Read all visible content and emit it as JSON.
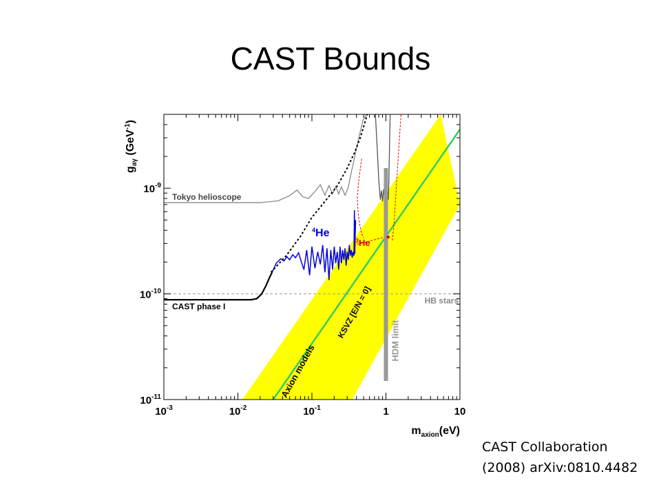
{
  "slide": {
    "title": "CAST Bounds",
    "citation_line1": "CAST Collaboration",
    "citation_line2": "(2008) arXiv:0810.4482"
  },
  "chart_data": {
    "type": "line",
    "x_scale": "log",
    "y_scale": "log",
    "xlim": [
      0.001,
      10
    ],
    "ylim": [
      1e-11,
      5e-09
    ],
    "xlabel": {
      "main": "m",
      "sub": "axion",
      "rest": "(eV)"
    },
    "ylabel": {
      "main": "g",
      "sub": "aγ",
      "rest": " (GeV",
      "sup": "-1",
      "end": ")"
    },
    "x_ticks": [
      {
        "value": 0.001,
        "base": "10",
        "exp": "-3"
      },
      {
        "value": 0.01,
        "base": "10",
        "exp": "-2"
      },
      {
        "value": 0.1,
        "base": "10",
        "exp": "-1"
      },
      {
        "value": 1,
        "base": "1",
        "exp": ""
      },
      {
        "value": 10,
        "base": "10",
        "exp": ""
      }
    ],
    "y_ticks": [
      {
        "value": 1e-11,
        "base": "10",
        "exp": "-11"
      },
      {
        "value": 1e-10,
        "base": "10",
        "exp": "-10"
      },
      {
        "value": 1e-09,
        "base": "10",
        "exp": "-9"
      }
    ],
    "colors": {
      "band": "#ffff00",
      "ksvz": "#33cc66",
      "tokyo": "#888888",
      "cast_phase1": "#000000",
      "he4": "#0000dd",
      "he3": "#dd0000",
      "dashed_projection": "#000000",
      "hdm": "#999999",
      "hb": "#999999"
    },
    "axion_band": {
      "upper_edge": [
        [
          0.0115,
          1e-11
        ],
        [
          5.5,
          5e-09
        ]
      ],
      "lower_edge": [
        [
          0.35,
          1e-11
        ],
        [
          10,
          7e-10
        ]
      ]
    },
    "series": [
      {
        "id": "tokyo",
        "name": "Tokyo helioscope",
        "label": "Tokyo helioscope",
        "points": [
          [
            0.001,
            7.3e-10
          ],
          [
            0.02,
            7.3e-10
          ],
          [
            0.035,
            7.6e-10
          ],
          [
            0.05,
            8.5e-10
          ],
          [
            0.063,
            9.6e-10
          ],
          [
            0.075,
            8.3e-10
          ],
          [
            0.09,
            8e-10
          ],
          [
            0.11,
            9.3e-10
          ],
          [
            0.13,
            1.08e-09
          ],
          [
            0.15,
            8.6e-10
          ],
          [
            0.17,
            1.06e-09
          ],
          [
            0.19,
            8.8e-10
          ],
          [
            0.21,
            1.04e-09
          ],
          [
            0.23,
            8.8e-10
          ],
          [
            0.25,
            1.03e-09
          ],
          [
            0.28,
            8.6e-10
          ],
          [
            0.31,
            1.02e-09
          ],
          [
            0.34,
            1.4e-09
          ],
          [
            0.38,
            2e-09
          ],
          [
            0.43,
            3e-09
          ],
          [
            0.49,
            4.4e-09
          ],
          [
            0.55,
            5e-09
          ]
        ]
      },
      {
        "id": "tokyo_high",
        "name": "Tokyo helioscope (high mass)",
        "points": [
          [
            0.72,
            5e-09
          ],
          [
            0.76,
            2.5e-09
          ],
          [
            0.8,
            1.2e-09
          ],
          [
            0.84,
            7.8e-10
          ],
          [
            0.87,
            9.5e-10
          ],
          [
            0.9,
            7.5e-10
          ],
          [
            0.93,
            9.8e-10
          ],
          [
            0.96,
            7.8e-10
          ],
          [
            0.99,
            1.1e-09
          ],
          [
            1.02,
            7.6e-10
          ],
          [
            1.05,
            9.4e-10
          ],
          [
            1.08,
            7.8e-10
          ],
          [
            1.1,
            1.3e-09
          ],
          [
            1.12,
            2.6e-09
          ],
          [
            1.14,
            5e-09
          ]
        ]
      },
      {
        "id": "cast_phase1",
        "name": "CAST phase I",
        "label": "CAST phase I",
        "points": [
          [
            0.001,
            8.8e-11
          ],
          [
            0.015,
            8.8e-11
          ],
          [
            0.018,
            9e-11
          ],
          [
            0.021,
            1e-10
          ],
          [
            0.024,
            1.2e-10
          ],
          [
            0.027,
            1.45e-10
          ],
          [
            0.029,
            1.6e-10
          ]
        ]
      },
      {
        "id": "he4",
        "name": "4He",
        "label": "He",
        "label_sup": "4",
        "points": [
          [
            0.029,
            1.6e-10
          ],
          [
            0.033,
            1.95e-10
          ],
          [
            0.038,
            2.15e-10
          ],
          [
            0.042,
            2.05e-10
          ],
          [
            0.046,
            2.25e-10
          ],
          [
            0.05,
            2.1e-10
          ],
          [
            0.055,
            2.35e-10
          ],
          [
            0.06,
            2.2e-10
          ],
          [
            0.066,
            2.45e-10
          ],
          [
            0.072,
            2e-10
          ],
          [
            0.078,
            1.7e-10
          ],
          [
            0.085,
            2.6e-10
          ],
          [
            0.093,
            1.5e-10
          ],
          [
            0.1,
            2.8e-10
          ],
          [
            0.11,
            1.75e-10
          ],
          [
            0.12,
            2.5e-10
          ],
          [
            0.13,
            1.9e-10
          ],
          [
            0.14,
            2.9e-10
          ],
          [
            0.15,
            1.6e-10
          ],
          [
            0.16,
            2.7e-10
          ],
          [
            0.17,
            1.35e-10
          ],
          [
            0.18,
            2.6e-10
          ],
          [
            0.19,
            1.7e-10
          ],
          [
            0.2,
            2.8e-10
          ],
          [
            0.21,
            1.95e-10
          ],
          [
            0.22,
            2.5e-10
          ],
          [
            0.23,
            1.7e-10
          ],
          [
            0.24,
            2.8e-10
          ],
          [
            0.25,
            1.95e-10
          ],
          [
            0.26,
            2.6e-10
          ],
          [
            0.27,
            2.1e-10
          ],
          [
            0.28,
            2.7e-10
          ],
          [
            0.29,
            1.85e-10
          ],
          [
            0.3,
            2.5e-10
          ],
          [
            0.31,
            2.1e-10
          ],
          [
            0.32,
            2.9e-10
          ],
          [
            0.33,
            2.3e-10
          ],
          [
            0.34,
            2.6e-10
          ],
          [
            0.35,
            2.2e-10
          ],
          [
            0.36,
            2.5e-10
          ],
          [
            0.37,
            2.3e-10
          ],
          [
            0.375,
            6.2e-10
          ],
          [
            0.38,
            2.4e-10
          ],
          [
            0.385,
            3.6e-10
          ],
          [
            0.39,
            5e-10
          ]
        ]
      },
      {
        "id": "he3",
        "name": "3He",
        "label": "He",
        "label_sup": "3",
        "points": [
          [
            0.37,
            2.9e-10
          ],
          [
            0.5,
            3.05e-10
          ],
          [
            0.7,
            3.25e-10
          ],
          [
            0.9,
            3.4e-10
          ],
          [
            1.03,
            3.45e-10
          ],
          [
            1.12,
            3.45e-10
          ]
        ]
      },
      {
        "id": "he3_sensitivity",
        "name": "3He sensitivity",
        "points": [
          [
            0.47,
            1.9e-09
          ],
          [
            0.43,
            1.2e-09
          ],
          [
            0.41,
            8e-10
          ],
          [
            0.42,
            6e-10
          ],
          [
            0.44,
            4.6e-10
          ],
          [
            0.47,
            3.7e-10
          ],
          [
            0.5,
            3.4e-10
          ]
        ]
      },
      {
        "id": "he3_upper_dash",
        "name": "3He upper",
        "points": [
          [
            1.22,
            3.2e-10
          ],
          [
            1.3,
            5e-10
          ],
          [
            1.4,
            1.2e-09
          ],
          [
            1.5,
            2.5e-09
          ],
          [
            1.6,
            5e-09
          ]
        ]
      },
      {
        "id": "cast_projection",
        "name": "CAST projection",
        "points": [
          [
            0.028,
            1.6e-10
          ],
          [
            0.045,
            2.3e-10
          ],
          [
            0.07,
            3.5e-10
          ],
          [
            0.1,
            5.3e-10
          ],
          [
            0.15,
            7.5e-10
          ],
          [
            0.22,
            1.05e-09
          ],
          [
            0.3,
            1.55e-09
          ],
          [
            0.38,
            2.2e-09
          ],
          [
            0.45,
            3e-09
          ],
          [
            0.52,
            4.2e-09
          ],
          [
            0.56,
            5e-09
          ]
        ]
      }
    ],
    "hdm_limit": {
      "x": 1.0,
      "y_range": [
        1.5e-11,
        1.55e-09
      ],
      "label": "HDM limit"
    },
    "hb_stars": {
      "y": 1e-10,
      "label": "HB stars"
    },
    "ksvz": {
      "points": [
        [
          0.03,
          1e-11
        ],
        [
          10,
          3.6e-09
        ]
      ],
      "label": "KSVZ [E/N = 0]"
    },
    "axion_models_label": "Axion models"
  }
}
